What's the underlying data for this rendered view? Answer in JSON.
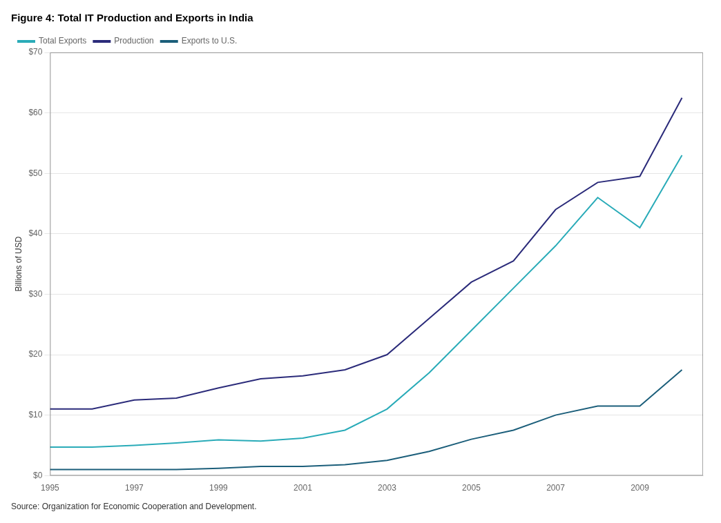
{
  "chart_data": {
    "type": "line",
    "title": "Figure 4: Total IT Production and Exports in India",
    "ylabel": "Billions of USD",
    "annotations": [
      "Source: Organization for Economic Cooperation and Development."
    ],
    "x": [
      1995,
      1996,
      1997,
      1998,
      1999,
      2000,
      2001,
      2002,
      2003,
      2004,
      2005,
      2006,
      2007,
      2008,
      2009,
      2010
    ],
    "series": [
      {
        "name": "Total Exports",
        "color": "#29ABB8",
        "values": [
          4.7,
          4.7,
          5.0,
          5.4,
          5.9,
          5.7,
          6.2,
          7.5,
          11.0,
          17.0,
          24.0,
          31.0,
          38.0,
          46.0,
          41.0,
          53.0
        ]
      },
      {
        "name": "Production",
        "color": "#2B2B7A",
        "values": [
          11.0,
          11.0,
          12.5,
          12.8,
          14.5,
          16.0,
          16.5,
          17.5,
          20.0,
          26.0,
          32.0,
          35.5,
          44.0,
          48.5,
          49.5,
          62.5
        ]
      },
      {
        "name": "Exports to U.S.",
        "color": "#1B5E7A",
        "values": [
          1.0,
          1.0,
          1.0,
          1.0,
          1.2,
          1.5,
          1.5,
          1.8,
          2.5,
          4.0,
          6.0,
          7.5,
          10.0,
          11.5,
          11.5,
          17.5
        ]
      }
    ],
    "xlim": [
      1995,
      2010.5
    ],
    "xticks": [
      1995,
      1997,
      1999,
      2001,
      2003,
      2005,
      2007,
      2009
    ],
    "ylim": [
      0,
      70
    ],
    "yticks": [
      {
        "value": 0,
        "label": "$0"
      },
      {
        "value": 10,
        "label": "$10"
      },
      {
        "value": 20,
        "label": "$20"
      },
      {
        "value": 30,
        "label": "$30"
      },
      {
        "value": 40,
        "label": "$40"
      },
      {
        "value": 50,
        "label": "$50"
      },
      {
        "value": 60,
        "label": "$60"
      },
      {
        "value": 70,
        "label": "$70"
      }
    ],
    "grid": "y",
    "legend": "upper left"
  }
}
